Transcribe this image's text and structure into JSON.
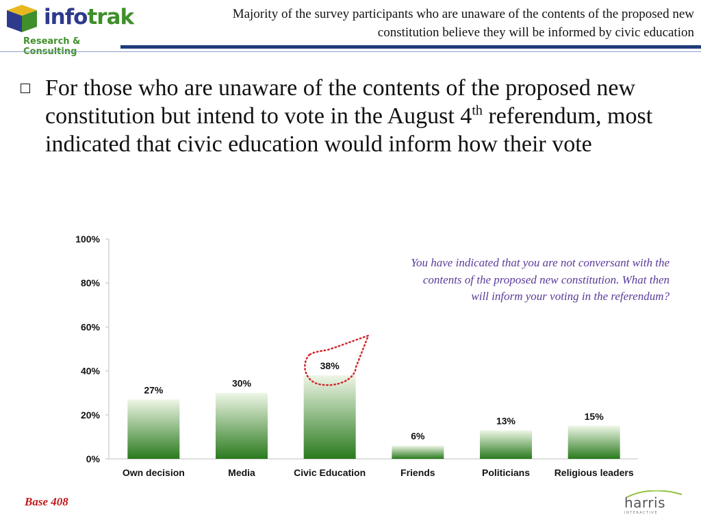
{
  "header": {
    "logo_word_a": "info",
    "logo_word_b": "trak",
    "logo_tagline": "Research & Consulting",
    "title": "Majority of the survey participants who are unaware of the contents of the proposed new constitution believe they will be informed by civic education",
    "colors": {
      "navy": "#1f3d7a",
      "logo_green": "#3f8f2a",
      "logo_blue": "#2e3a8c"
    }
  },
  "bullet": {
    "text_part1": "For those who are unaware of the contents of the proposed new constitution but intend to vote in the August 4",
    "superscript": "th",
    "text_part2": " referendum, most indicated that civic education would inform how their vote"
  },
  "question_text": "You have indicated that you are not conversant with the contents of the proposed new constitution. What then will inform your voting in the referendum?",
  "base_note": "Base 408",
  "footer_logo": {
    "word": "harris",
    "sub": "INTERACTIVE"
  },
  "chart_data": {
    "type": "bar",
    "categories": [
      "Own decision",
      "Media",
      "Civic Education",
      "Friends",
      "Politicians",
      "Religious leaders"
    ],
    "values": [
      27,
      30,
      38,
      6,
      13,
      15
    ],
    "value_labels": [
      "27%",
      "30%",
      "38%",
      "6%",
      "13%",
      "15%"
    ],
    "ylim": [
      0,
      100
    ],
    "yticks": [
      "0%",
      "20%",
      "40%",
      "60%",
      "80%",
      "100%"
    ],
    "ytick_values": [
      0,
      20,
      40,
      60,
      80,
      100
    ],
    "highlight_category": "Civic Education",
    "grid": false,
    "colors": {
      "bar_top": "#eef6e6",
      "bar_bottom": "#2a7a1e",
      "highlight_outline": "#d4262a"
    }
  }
}
